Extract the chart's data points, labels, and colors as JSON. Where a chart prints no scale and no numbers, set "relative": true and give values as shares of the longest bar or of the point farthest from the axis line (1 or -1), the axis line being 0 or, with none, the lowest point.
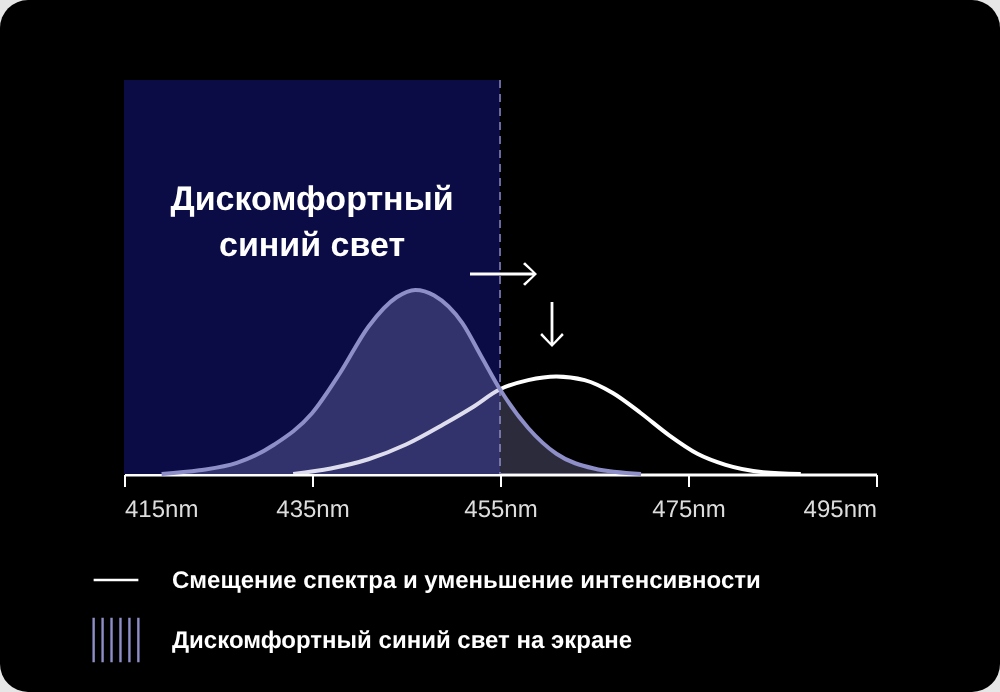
{
  "chart_data": {
    "type": "line",
    "relative": true,
    "xlim": [
      415,
      495
    ],
    "xticks": [
      {
        "value": 415,
        "label": "415nm"
      },
      {
        "value": 435,
        "label": "435nm"
      },
      {
        "value": 455,
        "label": "455nm"
      },
      {
        "value": 475,
        "label": "475nm"
      },
      {
        "value": 495,
        "label": "495nm"
      }
    ],
    "series": [
      {
        "name": "Смещение спектра и уменьшение интенсивности",
        "color": "#ffffff",
        "x": [
          433,
          437,
          441,
          445,
          449,
          452,
          455,
          458,
          461,
          464,
          467,
          470,
          473,
          476,
          479,
          483,
          487
        ],
        "values": [
          0,
          0.03,
          0.08,
          0.16,
          0.27,
          0.36,
          0.46,
          0.51,
          0.53,
          0.51,
          0.44,
          0.33,
          0.21,
          0.11,
          0.05,
          0.01,
          0
        ]
      },
      {
        "name": "Дискомфортный синий свет на экране",
        "color": "#8e8ec8",
        "type": "area",
        "x": [
          419,
          423,
          427,
          431,
          435,
          438,
          441,
          444,
          446,
          448,
          451,
          453,
          455,
          458,
          461,
          465,
          470
        ],
        "values": [
          0,
          0.02,
          0.06,
          0.16,
          0.33,
          0.55,
          0.8,
          0.96,
          1,
          0.97,
          0.82,
          0.64,
          0.46,
          0.25,
          0.11,
          0.03,
          0
        ]
      }
    ],
    "bands": [
      {
        "axis": "x",
        "from": 415,
        "to": 455,
        "label": "Дискомфортный синий свет",
        "color": "#0b0b45"
      }
    ],
    "ref_lines": [
      {
        "axis": "x",
        "value": 455,
        "line_style": "dashed",
        "color": "#6a6a9a"
      }
    ],
    "legend": "bottom left",
    "grid": false
  }
}
